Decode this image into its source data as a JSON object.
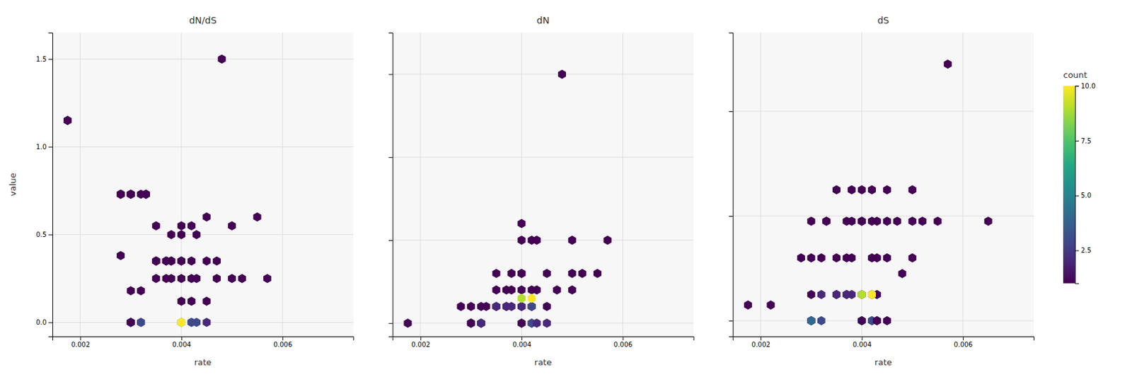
{
  "chart_data": [
    {
      "type": "scatter",
      "title": "dN/dS",
      "xlabel": "rate",
      "ylabel": "value",
      "marker": "hexagon",
      "grid": true,
      "xlim": [
        0.00145,
        0.0074
      ],
      "ylim": [
        -0.08,
        1.65
      ],
      "xticks": [
        0.002,
        0.004,
        0.006
      ],
      "yticks": [
        {
          "value": 0.0,
          "label": "0.0"
        },
        0.5,
        {
          "value": 1.0,
          "label": "1.0"
        },
        1.5
      ],
      "x": [
        0.00175,
        0.00175,
        0.0028,
        0.003,
        0.003,
        0.003,
        0.0032,
        0.0032,
        0.0033,
        0.0033,
        0.0033,
        0.0035,
        0.0035,
        0.0035,
        0.0035,
        0.0037,
        0.0037,
        0.0038,
        0.0038,
        0.0038,
        0.004,
        0.004,
        0.004,
        0.004,
        0.004,
        0.004,
        0.0042,
        0.0042,
        0.0042,
        0.0042,
        0.0043,
        0.0043,
        0.0045,
        0.0045,
        0.0045,
        0.0047,
        0.0047,
        0.005,
        0.005,
        0.0052,
        0.0055,
        0.0057,
        0.003,
        0.003,
        0.003,
        0.003,
        0.0032,
        0.0032,
        0.004,
        0.004,
        0.004,
        0.0042,
        0.0042,
        0.0043,
        0.0045,
        0.0028,
        0.0028,
        0.0028,
        0.003,
        0.0035,
        0.0037,
        0.0038,
        0.0048
      ],
      "values": [
        1.15,
        1.15,
        0.38,
        0.73,
        0.73,
        0.73,
        0.18,
        0.73,
        0.73,
        0.73,
        0.73,
        0.35,
        0.35,
        0.55,
        0.25,
        0.35,
        0.25,
        0.25,
        0.5,
        0.35,
        0.12,
        0.25,
        0.35,
        0.5,
        0.55,
        0.35,
        0.12,
        0.25,
        0.35,
        0.55,
        0.25,
        0.5,
        0.12,
        0.35,
        0.6,
        0.25,
        0.35,
        0.25,
        0.55,
        0.25,
        0.6,
        0.25,
        0.0,
        0.0,
        0.0,
        0.18,
        0.0,
        0.0,
        0.0,
        0.0,
        0.0,
        0.0,
        0.0,
        0.0,
        0.0,
        0.73,
        0.73,
        0.73,
        0.0,
        0.35,
        0.35,
        0.35,
        1.5
      ],
      "counts": [
        1,
        1,
        1,
        1,
        1,
        1,
        1,
        1,
        1,
        1,
        1,
        1,
        1,
        1,
        1,
        1,
        1,
        1,
        1,
        1,
        1,
        1,
        1,
        1,
        1,
        1,
        1,
        1,
        1,
        1,
        1,
        1,
        1,
        1,
        1,
        1,
        1,
        1,
        1,
        1,
        1,
        1,
        3,
        5,
        2,
        1,
        2,
        3,
        4,
        8,
        10,
        4,
        3,
        3,
        2,
        1,
        1,
        1,
        1,
        1,
        1,
        1,
        1
      ]
    },
    {
      "type": "scatter",
      "title": "dN",
      "xlabel": "rate",
      "marker": "hexagon",
      "grid": true,
      "tick_labels": "x",
      "xlim": [
        0.00145,
        0.0074
      ],
      "ylim": [
        -0.0008,
        0.0175
      ],
      "xticks": [
        0.002,
        0.004,
        0.006
      ],
      "yticks": [
        0.0,
        0.005,
        0.01,
        0.015
      ],
      "x": [
        0.00175,
        0.0028,
        0.003,
        0.003,
        0.003,
        0.0032,
        0.0032,
        0.0032,
        0.0033,
        0.0035,
        0.0035,
        0.0035,
        0.0037,
        0.0037,
        0.0038,
        0.0038,
        0.004,
        0.004,
        0.004,
        0.004,
        0.004,
        0.004,
        0.0042,
        0.0042,
        0.0042,
        0.0043,
        0.0043,
        0.0045,
        0.0045,
        0.0047,
        0.0048,
        0.005,
        0.005,
        0.005,
        0.0052,
        0.0055,
        0.003,
        0.003,
        0.003,
        0.0032,
        0.0032,
        0.004,
        0.004,
        0.004,
        0.0042,
        0.0042,
        0.0043,
        0.0045,
        0.0035,
        0.0037,
        0.0038,
        0.004,
        0.0042,
        0.004,
        0.0042,
        0.0057
      ],
      "values": [
        0.0,
        0.001,
        0.0,
        0.001,
        0.0,
        0.001,
        0.0,
        0.0,
        0.001,
        0.001,
        0.002,
        0.003,
        0.002,
        0.001,
        0.002,
        0.003,
        0.001,
        0.002,
        0.003,
        0.005,
        0.006,
        0.003,
        0.001,
        0.002,
        0.005,
        0.002,
        0.005,
        0.001,
        0.003,
        0.002,
        0.015,
        0.002,
        0.005,
        0.003,
        0.003,
        0.003,
        0.0,
        0.0,
        0.0,
        0.0,
        0.0,
        0.0,
        0.0,
        0.0,
        0.0,
        0.0,
        0.0,
        0.0,
        0.001,
        0.001,
        0.001,
        0.001,
        0.001,
        0.0015,
        0.0015,
        0.005
      ],
      "counts": [
        1,
        1,
        1,
        1,
        2,
        1,
        2,
        3,
        1,
        1,
        1,
        1,
        1,
        1,
        1,
        1,
        1,
        1,
        1,
        1,
        1,
        1,
        1,
        1,
        1,
        1,
        1,
        1,
        1,
        1,
        1,
        1,
        1,
        1,
        1,
        1,
        3,
        5,
        1,
        4,
        2,
        4,
        8,
        1,
        3,
        3,
        2,
        2,
        2,
        2,
        2,
        2,
        3,
        9,
        10,
        1
      ]
    },
    {
      "type": "scatter",
      "title": "dS",
      "xlabel": "rate",
      "marker": "hexagon",
      "grid": true,
      "tick_labels": "x",
      "xlim": [
        0.00145,
        0.0074
      ],
      "ylim": [
        -0.003,
        0.055
      ],
      "xticks": [
        0.002,
        0.004,
        0.006
      ],
      "yticks": [
        0.0,
        0.02,
        0.04
      ],
      "x": [
        0.00175,
        0.0022,
        0.0028,
        0.003,
        0.003,
        0.003,
        0.0032,
        0.0032,
        0.0033,
        0.0033,
        0.0035,
        0.0035,
        0.0035,
        0.0037,
        0.0037,
        0.0037,
        0.0038,
        0.0038,
        0.0038,
        0.004,
        0.004,
        0.004,
        0.004,
        0.0042,
        0.0042,
        0.0042,
        0.0042,
        0.0043,
        0.0043,
        0.0043,
        0.0045,
        0.0045,
        0.0045,
        0.0047,
        0.0048,
        0.005,
        0.005,
        0.005,
        0.0052,
        0.0055,
        0.0057,
        0.0065,
        0.003,
        0.003,
        0.003,
        0.0032,
        0.004,
        0.004,
        0.004,
        0.0042,
        0.0042,
        0.0043,
        0.0043,
        0.0045,
        0.0038,
        0.0035,
        0.0037,
        0.004,
        0.0042
      ],
      "values": [
        0.003,
        0.003,
        0.012,
        0.0,
        0.012,
        0.019,
        0.012,
        0.005,
        0.019,
        0.019,
        0.005,
        0.012,
        0.025,
        0.012,
        0.019,
        0.005,
        0.019,
        0.012,
        0.025,
        0.005,
        0.019,
        0.025,
        0.019,
        0.005,
        0.012,
        0.019,
        0.025,
        0.005,
        0.012,
        0.019,
        0.012,
        0.019,
        0.025,
        0.019,
        0.009,
        0.019,
        0.025,
        0.012,
        0.019,
        0.019,
        0.049,
        0.019,
        0.0,
        0.0,
        0.005,
        0.0,
        0.0,
        0.0,
        0.0,
        0.0,
        0.0,
        0.0,
        0.0,
        0.0,
        0.005,
        0.005,
        0.005,
        0.005,
        0.005
      ],
      "counts": [
        1,
        1,
        1,
        1,
        1,
        1,
        1,
        2,
        1,
        1,
        1,
        1,
        1,
        1,
        1,
        1,
        1,
        1,
        1,
        1,
        1,
        1,
        1,
        1,
        1,
        1,
        1,
        1,
        1,
        1,
        1,
        1,
        1,
        1,
        1,
        1,
        1,
        1,
        1,
        1,
        1,
        1,
        2,
        4,
        1,
        3,
        4,
        7,
        1,
        3,
        3,
        2,
        1,
        1,
        2,
        2,
        2,
        9,
        10
      ],
      "color_title": "count",
      "color_range": [
        1,
        10
      ],
      "color_ticks": [
        2.5,
        {
          "value": 5.0,
          "label": "5.0"
        },
        7.5,
        {
          "value": 10.0,
          "label": "10.0"
        }
      ]
    }
  ]
}
